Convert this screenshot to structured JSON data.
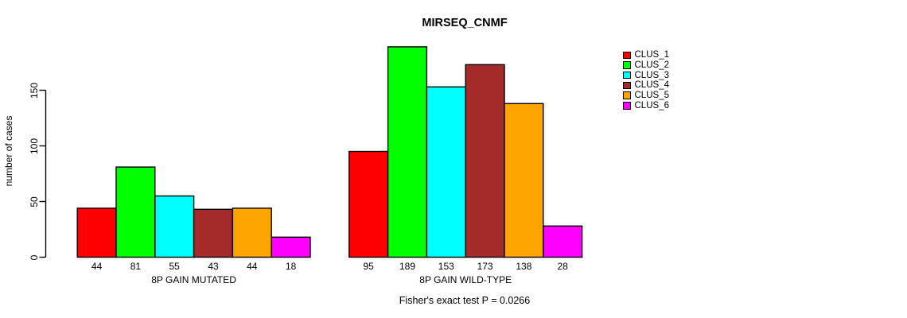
{
  "page": {
    "background": "#ffffff"
  },
  "chart_data": {
    "type": "bar",
    "title": "MIRSEQ_CNMF",
    "ylabel": "number of cases",
    "xlabel": "",
    "yticks": [
      0,
      50,
      100,
      150
    ],
    "ylim": [
      0,
      150
    ],
    "grid": false,
    "legend_position": "right",
    "categories": [
      "8P GAIN MUTATED",
      "8P GAIN WILD-TYPE"
    ],
    "series": [
      {
        "name": "CLUS_1",
        "color": "#ff0000",
        "values": [
          44,
          95
        ]
      },
      {
        "name": "CLUS_2",
        "color": "#00ff00",
        "values": [
          81,
          189
        ]
      },
      {
        "name": "CLUS_3",
        "color": "#00ffff",
        "values": [
          55,
          153
        ]
      },
      {
        "name": "CLUS_4",
        "color": "#a52a2a",
        "values": [
          43,
          173
        ]
      },
      {
        "name": "CLUS_5",
        "color": "#ffa500",
        "values": [
          44,
          138
        ]
      },
      {
        "name": "CLUS_6",
        "color": "#ff00ff",
        "values": [
          18,
          28
        ]
      }
    ],
    "bar_value_labels_shown": true,
    "annotation": "Fisher's exact test P = 0.0266",
    "axis_color": "#000000",
    "bar_border_color": "#000000"
  }
}
